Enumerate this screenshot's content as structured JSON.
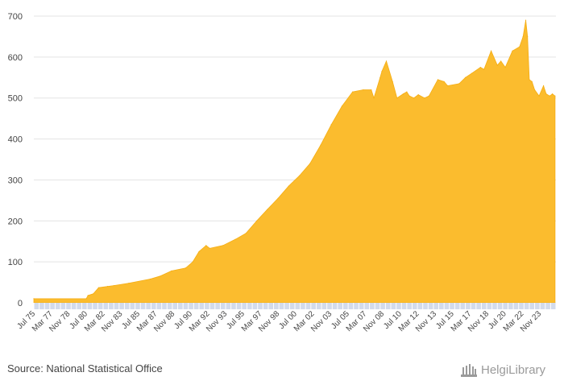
{
  "chart_data": {
    "type": "area",
    "title": "",
    "xlabel": "",
    "ylabel": "",
    "ylim": [
      0,
      700
    ],
    "yticks": [
      0,
      100,
      200,
      300,
      400,
      500,
      600,
      700
    ],
    "grid": true,
    "legend": "none",
    "fill_color": "#fbbc2e",
    "x_tick_labels": [
      "Jul 75",
      "Mar 77",
      "Nov 78",
      "Jul 80",
      "Mar 82",
      "Nov 83",
      "Jul 85",
      "Mar 87",
      "Nov 88",
      "Jul 90",
      "Mar 92",
      "Nov 93",
      "Jul 95",
      "Mar 97",
      "Nov 98",
      "Jul 00",
      "Mar 02",
      "Nov 03",
      "Jul 05",
      "Mar 07",
      "Nov 08",
      "Jul 10",
      "Mar 12",
      "Nov 13",
      "Jul 15",
      "Mar 17",
      "Nov 18",
      "Jul 20",
      "Mar 22",
      "Nov 23"
    ],
    "x": [
      "1975-07",
      "1980-06",
      "1980-08",
      "1981-02",
      "1981-08",
      "1982-06",
      "1983-01",
      "1984-06",
      "1986-06",
      "1987-05",
      "1988-06",
      "1989-10",
      "1990-06",
      "1991-01",
      "1991-09",
      "1992-01",
      "1993-04",
      "1994-06",
      "1995-06",
      "1996-06",
      "1997-06",
      "1998-06",
      "1999-06",
      "2000-06",
      "2001-06",
      "2002-06",
      "2003-06",
      "2004-06",
      "2005-06",
      "2006-06",
      "2007-03",
      "2007-06",
      "2008-01",
      "2008-03",
      "2008-08",
      "2009-03",
      "2009-08",
      "2010-03",
      "2010-07",
      "2010-10",
      "2011-03",
      "2011-08",
      "2012-03",
      "2012-08",
      "2013-06",
      "2014-01",
      "2014-05",
      "2015-06",
      "2016-01",
      "2016-08",
      "2017-06",
      "2017-10",
      "2018-06",
      "2019-01",
      "2019-05",
      "2019-10",
      "2020-06",
      "2021-02",
      "2021-06",
      "2021-09",
      "2021-11",
      "2022-01",
      "2022-04",
      "2022-07",
      "2022-12",
      "2023-05",
      "2023-08",
      "2023-12",
      "2024-03",
      "2024-06"
    ],
    "values": [
      10,
      10,
      18,
      22,
      37,
      40,
      42,
      48,
      58,
      65,
      78,
      85,
      100,
      125,
      140,
      133,
      140,
      155,
      170,
      200,
      228,
      255,
      285,
      310,
      340,
      385,
      435,
      480,
      515,
      520,
      520,
      500,
      550,
      565,
      590,
      540,
      500,
      510,
      515,
      505,
      500,
      508,
      500,
      505,
      545,
      540,
      530,
      535,
      550,
      560,
      575,
      570,
      615,
      580,
      590,
      575,
      615,
      625,
      650,
      690,
      650,
      545,
      540,
      520,
      505,
      530,
      510,
      505,
      510,
      505
    ]
  },
  "source": "Source: National Statistical Office",
  "brand": {
    "name": "HelgiLibrary",
    "text_color": "#9a9a9a"
  }
}
